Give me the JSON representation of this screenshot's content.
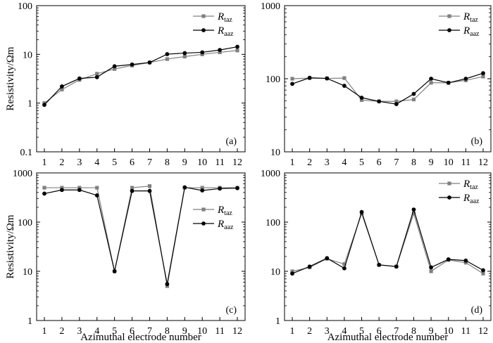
{
  "figure": {
    "shared_xlabel": "Azimuthal electrode number",
    "shared_ylabel": "Resistivity/Ωm"
  },
  "colors": {
    "taz": "#808080",
    "aaz": "#000000",
    "axis": "#000000"
  },
  "chart_data": [
    {
      "type": "line",
      "panel_label": "(a)",
      "ylabel": "Resistivity/Ωm",
      "xlabel": "",
      "yscale": "log",
      "ylim": [
        0.1,
        100
      ],
      "ytick_labels": [
        "0.1",
        "1",
        "10",
        "100"
      ],
      "ytick_values": [
        0.1,
        1,
        10,
        100
      ],
      "x": [
        1,
        2,
        3,
        4,
        5,
        6,
        7,
        8,
        9,
        10,
        11,
        12
      ],
      "legend_position": "top-right",
      "series": [
        {
          "key": "taz",
          "name_main": "R",
          "name_sub": "taz",
          "marker": "square",
          "values": [
            1.0,
            1.9,
            3.0,
            4.0,
            5.0,
            5.9,
            6.8,
            8.0,
            9.0,
            10.0,
            11.0,
            12.0
          ]
        },
        {
          "key": "aaz",
          "name_main": "R",
          "name_sub": "aaz",
          "marker": "circle",
          "values": [
            0.92,
            2.2,
            3.2,
            3.4,
            5.7,
            6.2,
            6.8,
            10.1,
            10.6,
            11.0,
            12.3,
            14.3
          ]
        }
      ]
    },
    {
      "type": "line",
      "panel_label": "(b)",
      "ylabel": "",
      "xlabel": "",
      "yscale": "log",
      "ylim": [
        10,
        1000
      ],
      "ytick_labels": [
        "10",
        "100",
        "1000"
      ],
      "ytick_values": [
        10,
        100,
        1000
      ],
      "x": [
        1,
        2,
        3,
        4,
        5,
        6,
        7,
        8,
        9,
        10,
        11,
        12
      ],
      "legend_position": "top-right",
      "series": [
        {
          "key": "taz",
          "name_main": "R",
          "name_sub": "taz",
          "marker": "square",
          "values": [
            100,
            102,
            101,
            102,
            51,
            49,
            49,
            52,
            88,
            88,
            95,
            107
          ]
        },
        {
          "key": "aaz",
          "name_main": "R",
          "name_sub": "aaz",
          "marker": "circle",
          "values": [
            85,
            103,
            101,
            80,
            55,
            49,
            45,
            62,
            100,
            88,
            100,
            119
          ]
        }
      ]
    },
    {
      "type": "line",
      "panel_label": "(c)",
      "ylabel": "Resistivity/Ωm",
      "xlabel": "Azimuthal electrode number",
      "yscale": "log",
      "ylim": [
        1,
        1000
      ],
      "ytick_labels": [
        "1",
        "10",
        "100",
        "1000"
      ],
      "ytick_values": [
        1,
        10,
        100,
        1000
      ],
      "x": [
        1,
        2,
        3,
        4,
        5,
        6,
        7,
        8,
        9,
        10,
        11,
        12
      ],
      "x_tick_labels": [
        "1",
        "2",
        "3",
        "4",
        "5",
        "6",
        "7",
        "8",
        "9",
        "10",
        "11",
        "12"
      ],
      "legend_position": "middle-right",
      "series": [
        {
          "key": "taz",
          "name_main": "R",
          "name_sub": "taz",
          "marker": "square",
          "values": [
            500,
            500,
            500,
            500,
            10,
            500,
            540,
            5,
            500,
            500,
            500,
            500
          ]
        },
        {
          "key": "aaz",
          "name_main": "R",
          "name_sub": "aaz",
          "marker": "circle",
          "values": [
            380,
            450,
            450,
            350,
            10,
            430,
            430,
            5.5,
            510,
            440,
            480,
            490
          ]
        }
      ]
    },
    {
      "type": "line",
      "panel_label": "(d)",
      "ylabel": "",
      "xlabel": "Azimuthal electrode number",
      "yscale": "log",
      "ylim": [
        1,
        1000
      ],
      "ytick_labels": [
        "1",
        "10",
        "100",
        "1000"
      ],
      "ytick_values": [
        1,
        10,
        100,
        1000
      ],
      "x": [
        1,
        2,
        3,
        4,
        5,
        6,
        7,
        8,
        9,
        10,
        11,
        12
      ],
      "x_tick_labels": [
        "1",
        "2",
        "3",
        "4",
        "5",
        "6",
        "7",
        "8",
        "9",
        "10",
        "11",
        "12"
      ],
      "legend_position": "top-right",
      "series": [
        {
          "key": "taz",
          "name_main": "R",
          "name_sub": "taz",
          "marker": "square",
          "values": [
            10,
            12,
            18,
            14,
            150,
            13.5,
            12.5,
            150,
            10,
            17,
            15,
            9
          ]
        },
        {
          "key": "aaz",
          "name_main": "R",
          "name_sub": "aaz",
          "marker": "circle",
          "values": [
            9,
            12.5,
            18.5,
            11.5,
            160,
            13.5,
            12.5,
            180,
            12,
            17.5,
            16.5,
            10.5
          ]
        }
      ]
    }
  ]
}
